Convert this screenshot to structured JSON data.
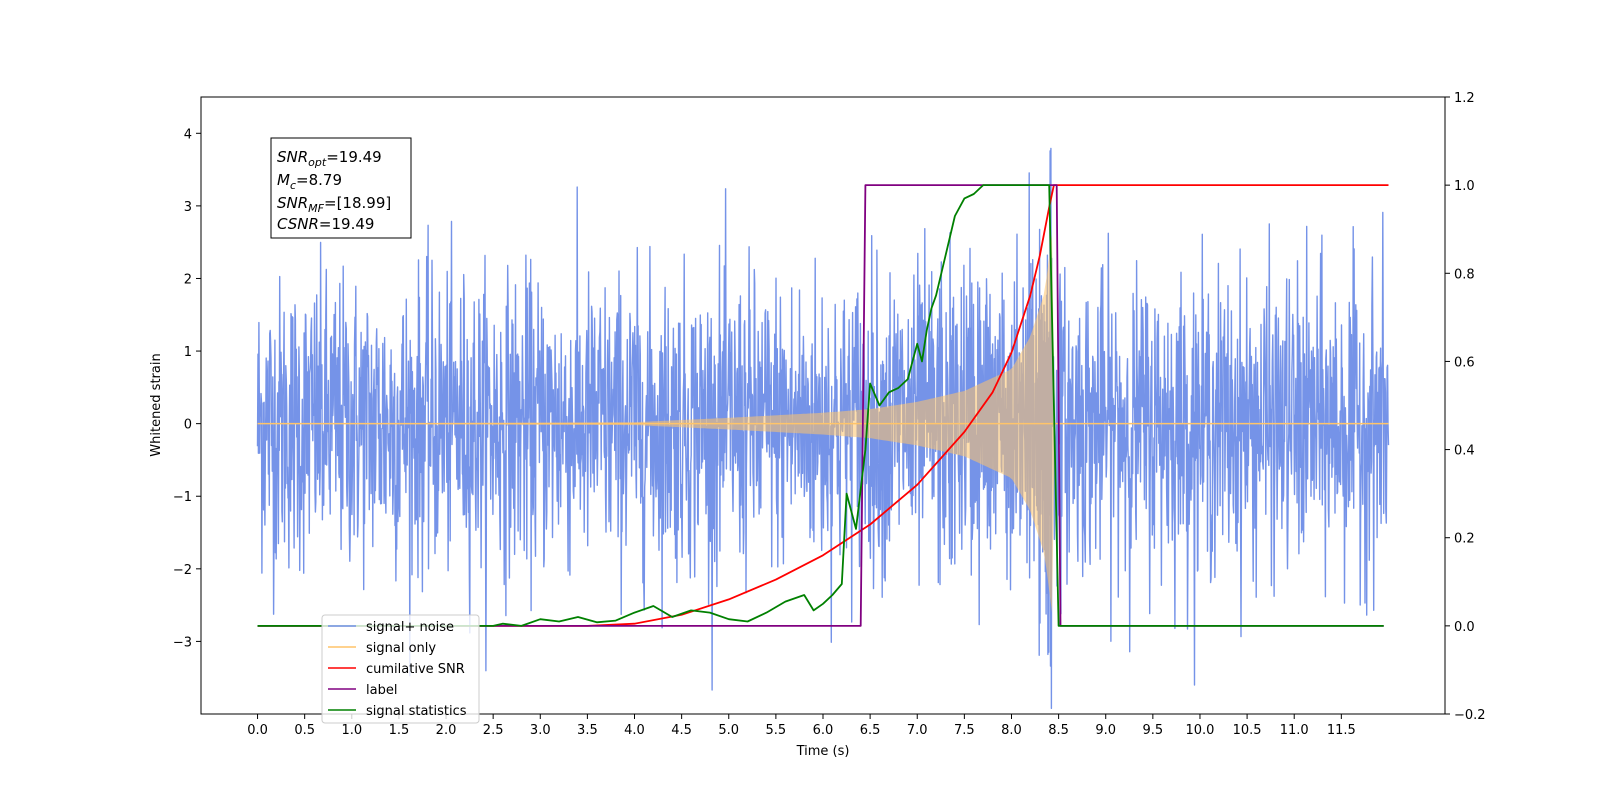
{
  "chart_data": {
    "type": "line",
    "xlabel": "Time (s)",
    "ylabel": "Whitened strain",
    "xlim": [
      -0.6,
      12.6
    ],
    "ylim": [
      -4.0,
      4.5
    ],
    "y2lim": [
      -0.2,
      1.2
    ],
    "x_ticks": [
      0.0,
      0.5,
      1.0,
      1.5,
      2.0,
      2.5,
      3.0,
      3.5,
      4.0,
      4.5,
      5.0,
      5.5,
      6.0,
      6.5,
      7.0,
      7.5,
      8.0,
      8.5,
      9.0,
      9.5,
      10.0,
      10.5,
      11.0,
      11.5
    ],
    "x_tick_labels": [
      "0.0",
      "0.5",
      "1.0",
      "1.5",
      "2.0",
      "2.5",
      "3.0",
      "3.5",
      "4.0",
      "4.5",
      "5.0",
      "5.5",
      "6.0",
      "6.5",
      "7.0",
      "7.5",
      "8.0",
      "8.5",
      "9.0",
      "9.5",
      "10.0",
      "10.5",
      "11.0",
      "11.5"
    ],
    "y_ticks": [
      -3,
      -2,
      -1,
      0,
      1,
      2,
      3,
      4
    ],
    "y_tick_labels": [
      "−3",
      "−2",
      "−1",
      "0",
      "1",
      "2",
      "3",
      "4"
    ],
    "y2_ticks": [
      -0.2,
      0.0,
      0.2,
      0.4,
      0.6,
      0.8,
      1.0,
      1.2
    ],
    "y2_tick_labels": [
      "−0.2",
      "0.0",
      "0.2",
      "0.4",
      "0.6",
      "0.8",
      "1.0",
      "1.2"
    ],
    "grid": false,
    "legend_position": "bottom-left",
    "annotation": {
      "lines": [
        {
          "main": "SNR",
          "sub": "opt",
          "rest": "=19.49"
        },
        {
          "main": "M",
          "sub": "c",
          "rest": "=8.79"
        },
        {
          "main": "SNR",
          "sub": "MF",
          "rest": "=[18.99]"
        },
        {
          "main": "CSNR",
          "sub": "",
          "rest": "=19.49"
        }
      ]
    },
    "series": [
      {
        "name": "signal+ noise",
        "color": "#7593e8",
        "axis": "left",
        "x_range": [
          0.0,
          12.0
        ],
        "noise_sigma": 1.0,
        "y_range_observed": [
          -3.6,
          4.1
        ]
      },
      {
        "name": "signal only",
        "color": "#ffc469",
        "axis": "left",
        "x_range": [
          0.0,
          12.0
        ],
        "chirp_end": 8.43,
        "amplitude_points": [
          {
            "x": 0.0,
            "y": 0.0
          },
          {
            "x": 4.0,
            "y": 0.02
          },
          {
            "x": 5.0,
            "y": 0.08
          },
          {
            "x": 6.0,
            "y": 0.15
          },
          {
            "x": 6.5,
            "y": 0.2
          },
          {
            "x": 7.0,
            "y": 0.3
          },
          {
            "x": 7.5,
            "y": 0.45
          },
          {
            "x": 8.0,
            "y": 0.75
          },
          {
            "x": 8.2,
            "y": 1.2
          },
          {
            "x": 8.35,
            "y": 1.8
          },
          {
            "x": 8.43,
            "y": 2.6
          }
        ]
      },
      {
        "name": "cumilative SNR",
        "color": "#ff0000",
        "axis": "right",
        "points": [
          {
            "x": 0.0,
            "y": 0.0
          },
          {
            "x": 3.5,
            "y": 0.0
          },
          {
            "x": 4.0,
            "y": 0.005
          },
          {
            "x": 4.5,
            "y": 0.025
          },
          {
            "x": 5.0,
            "y": 0.06
          },
          {
            "x": 5.5,
            "y": 0.105
          },
          {
            "x": 6.0,
            "y": 0.16
          },
          {
            "x": 6.5,
            "y": 0.23
          },
          {
            "x": 7.0,
            "y": 0.32
          },
          {
            "x": 7.5,
            "y": 0.44
          },
          {
            "x": 7.8,
            "y": 0.53
          },
          {
            "x": 8.0,
            "y": 0.62
          },
          {
            "x": 8.2,
            "y": 0.75
          },
          {
            "x": 8.3,
            "y": 0.84
          },
          {
            "x": 8.4,
            "y": 0.95
          },
          {
            "x": 8.45,
            "y": 1.0
          },
          {
            "x": 12.0,
            "y": 1.0
          }
        ]
      },
      {
        "name": "label",
        "color": "#800080",
        "axis": "right",
        "points": [
          {
            "x": 0.0,
            "y": 0.0
          },
          {
            "x": 6.4,
            "y": 0.0
          },
          {
            "x": 6.45,
            "y": 1.0
          },
          {
            "x": 8.48,
            "y": 1.0
          },
          {
            "x": 8.52,
            "y": 0.0
          },
          {
            "x": 11.95,
            "y": 0.0
          }
        ]
      },
      {
        "name": "signal statistics",
        "color": "#008000",
        "axis": "right",
        "points": [
          {
            "x": 0.0,
            "y": 0.0
          },
          {
            "x": 2.5,
            "y": 0.0
          },
          {
            "x": 2.6,
            "y": 0.005
          },
          {
            "x": 2.8,
            "y": 0.0
          },
          {
            "x": 3.0,
            "y": 0.015
          },
          {
            "x": 3.2,
            "y": 0.01
          },
          {
            "x": 3.4,
            "y": 0.02
          },
          {
            "x": 3.6,
            "y": 0.008
          },
          {
            "x": 3.8,
            "y": 0.012
          },
          {
            "x": 4.0,
            "y": 0.03
          },
          {
            "x": 4.2,
            "y": 0.045
          },
          {
            "x": 4.4,
            "y": 0.02
          },
          {
            "x": 4.6,
            "y": 0.035
          },
          {
            "x": 4.8,
            "y": 0.03
          },
          {
            "x": 5.0,
            "y": 0.015
          },
          {
            "x": 5.2,
            "y": 0.01
          },
          {
            "x": 5.4,
            "y": 0.03
          },
          {
            "x": 5.6,
            "y": 0.055
          },
          {
            "x": 5.8,
            "y": 0.07
          },
          {
            "x": 5.9,
            "y": 0.035
          },
          {
            "x": 6.0,
            "y": 0.05
          },
          {
            "x": 6.1,
            "y": 0.07
          },
          {
            "x": 6.2,
            "y": 0.095
          },
          {
            "x": 6.25,
            "y": 0.3
          },
          {
            "x": 6.35,
            "y": 0.22
          },
          {
            "x": 6.45,
            "y": 0.4
          },
          {
            "x": 6.5,
            "y": 0.55
          },
          {
            "x": 6.6,
            "y": 0.5
          },
          {
            "x": 6.7,
            "y": 0.53
          },
          {
            "x": 6.8,
            "y": 0.54
          },
          {
            "x": 6.9,
            "y": 0.56
          },
          {
            "x": 7.0,
            "y": 0.64
          },
          {
            "x": 7.05,
            "y": 0.6
          },
          {
            "x": 7.1,
            "y": 0.67
          },
          {
            "x": 7.15,
            "y": 0.72
          },
          {
            "x": 7.2,
            "y": 0.75
          },
          {
            "x": 7.3,
            "y": 0.84
          },
          {
            "x": 7.4,
            "y": 0.93
          },
          {
            "x": 7.5,
            "y": 0.97
          },
          {
            "x": 7.6,
            "y": 0.98
          },
          {
            "x": 7.7,
            "y": 1.0
          },
          {
            "x": 8.4,
            "y": 1.0
          },
          {
            "x": 8.5,
            "y": 0.0
          },
          {
            "x": 11.95,
            "y": 0.0
          }
        ]
      }
    ]
  }
}
